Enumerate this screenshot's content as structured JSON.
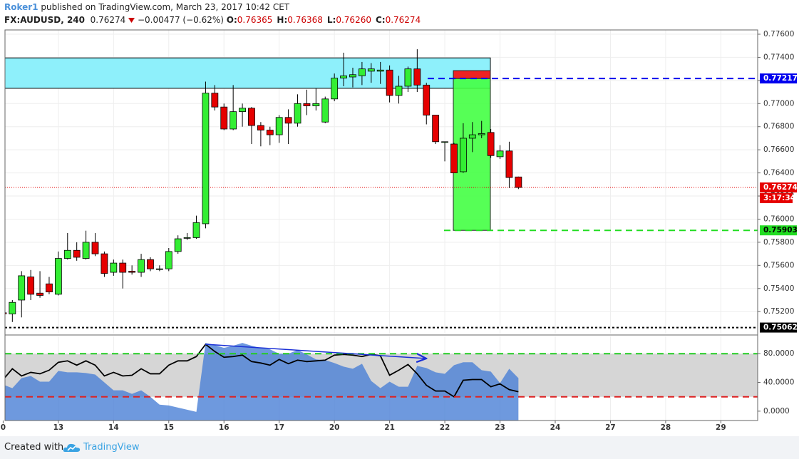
{
  "header": {
    "author": "Roker1",
    "published": "published on TradingView.com, March 23, 2017 10:42 CET",
    "symbol": "FX:AUDUSD, 240",
    "last": "0.76274",
    "change": "−0.00477 (−0.62%)",
    "ohlc": [
      {
        "key": "O:",
        "value": "0.76365"
      },
      {
        "key": "H:",
        "value": "0.76368"
      },
      {
        "key": "L:",
        "value": "0.76260"
      },
      {
        "key": "C:",
        "value": "0.76274"
      }
    ]
  },
  "chart_data": {
    "type": "candlestick",
    "up_color": "#33ee33",
    "down_color": "#e60000",
    "open": [
      0.7519,
      0.7518,
      0.753,
      0.755,
      0.7536,
      0.7544,
      0.7535,
      0.7566,
      0.7573,
      0.7566,
      0.758,
      0.757,
      0.7554,
      0.7562,
      0.7555,
      0.7554,
      0.7565,
      0.7557,
      0.7557,
      0.7572,
      0.7584,
      0.7584,
      0.7596,
      0.7709,
      0.7697,
      0.7678,
      0.7693,
      0.7696,
      0.7681,
      0.7677,
      0.7673,
      0.7688,
      0.7683,
      0.77,
      0.7698,
      0.7684,
      0.7704,
      0.7722,
      0.7723,
      0.7724,
      0.7728,
      0.7728,
      0.7729,
      0.7707,
      0.7715,
      0.773,
      0.7716,
      0.769,
      0.7667,
      0.7665,
      0.7641,
      0.767,
      0.7673,
      0.7675,
      0.7654,
      0.7659,
      0.76365
    ],
    "high": [
      0.7522,
      0.753,
      0.7555,
      0.7556,
      0.7555,
      0.755,
      0.7572,
      0.7588,
      0.758,
      0.759,
      0.7588,
      0.7572,
      0.7565,
      0.7565,
      0.756,
      0.757,
      0.7567,
      0.756,
      0.7575,
      0.7586,
      0.7588,
      0.7603,
      0.7719,
      0.7716,
      0.77,
      0.7716,
      0.77,
      0.7697,
      0.7684,
      0.768,
      0.769,
      0.7695,
      0.7708,
      0.7712,
      0.7713,
      0.7706,
      0.7726,
      0.7744,
      0.7731,
      0.7736,
      0.7735,
      0.7736,
      0.7733,
      0.7724,
      0.7732,
      0.7747,
      0.7718,
      0.769,
      0.7667,
      0.7666,
      0.7683,
      0.7684,
      0.7685,
      0.7678,
      0.7664,
      0.7667,
      0.76368
    ],
    "low": [
      0.7515,
      0.7511,
      0.7515,
      0.753,
      0.7532,
      0.7535,
      0.7534,
      0.7565,
      0.7564,
      0.7565,
      0.7568,
      0.755,
      0.7551,
      0.754,
      0.7552,
      0.755,
      0.7555,
      0.7555,
      0.7555,
      0.757,
      0.7582,
      0.7583,
      0.7592,
      0.7694,
      0.7677,
      0.7677,
      0.768,
      0.7665,
      0.7663,
      0.7664,
      0.7666,
      0.7665,
      0.768,
      0.769,
      0.7694,
      0.7683,
      0.7702,
      0.7715,
      0.7714,
      0.7716,
      0.7718,
      0.7717,
      0.7701,
      0.77,
      0.771,
      0.771,
      0.7682,
      0.7665,
      0.765,
      0.764,
      0.764,
      0.7658,
      0.767,
      0.7653,
      0.7652,
      0.7627,
      0.7626
    ],
    "close": [
      0.7518,
      0.7528,
      0.7551,
      0.7535,
      0.7534,
      0.7537,
      0.7566,
      0.7573,
      0.7567,
      0.758,
      0.757,
      0.7553,
      0.7562,
      0.7554,
      0.7554,
      0.7565,
      0.7557,
      0.7557,
      0.7572,
      0.7583,
      0.7584,
      0.7597,
      0.7709,
      0.7697,
      0.7678,
      0.7693,
      0.7696,
      0.7681,
      0.7677,
      0.7673,
      0.7688,
      0.7683,
      0.77,
      0.7698,
      0.77,
      0.7704,
      0.7722,
      0.7724,
      0.7725,
      0.773,
      0.773,
      0.7729,
      0.7707,
      0.7715,
      0.773,
      0.7716,
      0.769,
      0.7667,
      0.7667,
      0.764,
      0.767,
      0.7673,
      0.7674,
      0.7655,
      0.7659,
      0.7636,
      0.76274
    ],
    "xlim": [
      0.2,
      82
    ],
    "xticks": [
      {
        "value": 0,
        "label": "0"
      },
      {
        "value": 6,
        "label": "13"
      },
      {
        "value": 12,
        "label": "14"
      },
      {
        "value": 18,
        "label": "15"
      },
      {
        "value": 24,
        "label": "16"
      },
      {
        "value": 30,
        "label": "17"
      },
      {
        "value": 36,
        "label": "20"
      },
      {
        "value": 42,
        "label": "21"
      },
      {
        "value": 48,
        "label": "22"
      },
      {
        "value": 54,
        "label": "23"
      },
      {
        "value": 60,
        "label": "24"
      },
      {
        "value": 66,
        "label": "27"
      },
      {
        "value": 72,
        "label": "28"
      },
      {
        "value": 78,
        "label": "29"
      }
    ],
    "ylim": [
      0.7501,
      0.77637
    ],
    "yticks": [
      {
        "value": 0.752,
        "label": "0.75200"
      },
      {
        "value": 0.754,
        "label": "0.75400"
      },
      {
        "value": 0.756,
        "label": "0.75600"
      },
      {
        "value": 0.758,
        "label": "0.75800"
      },
      {
        "value": 0.76,
        "label": "0.76000"
      },
      {
        "value": 0.762,
        "label": "0.76200"
      },
      {
        "value": 0.764,
        "label": "0.76400"
      },
      {
        "value": 0.766,
        "label": "0.76600"
      },
      {
        "value": 0.768,
        "label": "0.76800"
      },
      {
        "value": 0.77,
        "label": "0.77000"
      },
      {
        "value": 0.772,
        "label": "0.77200"
      },
      {
        "value": 0.774,
        "label": "0.77400"
      },
      {
        "value": 0.776,
        "label": "0.77600"
      }
    ],
    "zone": {
      "top": 0.77395,
      "bottom": 0.77132,
      "color": "#8ef0fb"
    },
    "position": {
      "entry": 0.77217,
      "stop": 0.77285,
      "target": 0.75903,
      "entry_color": "#0000ee",
      "target_color": "#22dd22",
      "stop_color": "#ee2222",
      "profit_color": "#44ff44"
    },
    "current": {
      "value": 0.76274,
      "color": "#e60000",
      "countdown": "3:17:34"
    },
    "level": {
      "value": 0.75062,
      "color": "#000000"
    },
    "indicator": {
      "type": "line",
      "ylim": [
        -13,
        104
      ],
      "yticks": [
        {
          "value": 0,
          "label": "0.0000"
        },
        {
          "value": 40,
          "label": "40.0000"
        },
        {
          "value": 80,
          "label": "80.0000"
        }
      ],
      "band": [
        20,
        80
      ],
      "upper_color": "#22cc22",
      "lower_color": "#dd2222",
      "series": [
        {
          "type": "area",
          "color": "#4a7fd6",
          "values": [
            37,
            32,
            46,
            49,
            41,
            41,
            56,
            54,
            54,
            53,
            51,
            40,
            29,
            29,
            24,
            29,
            20,
            9,
            8,
            5,
            2,
            -1,
            95,
            92,
            88,
            91,
            95,
            91,
            88,
            86,
            80,
            80,
            85,
            79,
            72,
            71,
            67,
            62,
            59,
            66,
            42,
            32,
            41,
            34,
            34,
            63,
            60,
            54,
            52,
            64,
            68,
            68,
            57,
            55,
            39,
            59,
            46
          ]
        },
        {
          "type": "line",
          "color": "#000000",
          "values": [
            44,
            59,
            49,
            54,
            52,
            57,
            68,
            70,
            64,
            70,
            64,
            49,
            54,
            49,
            50,
            59,
            52,
            52,
            64,
            70,
            70,
            76,
            93,
            83,
            75,
            76,
            78,
            69,
            67,
            64,
            72,
            66,
            71,
            69,
            70,
            71,
            78,
            79,
            78,
            76,
            79,
            77,
            50,
            57,
            65,
            52,
            36,
            28,
            28,
            20,
            43,
            44,
            44,
            34,
            38,
            30,
            27
          ]
        }
      ]
    }
  },
  "footer": {
    "created": "Created with",
    "brand": "TradingView"
  }
}
